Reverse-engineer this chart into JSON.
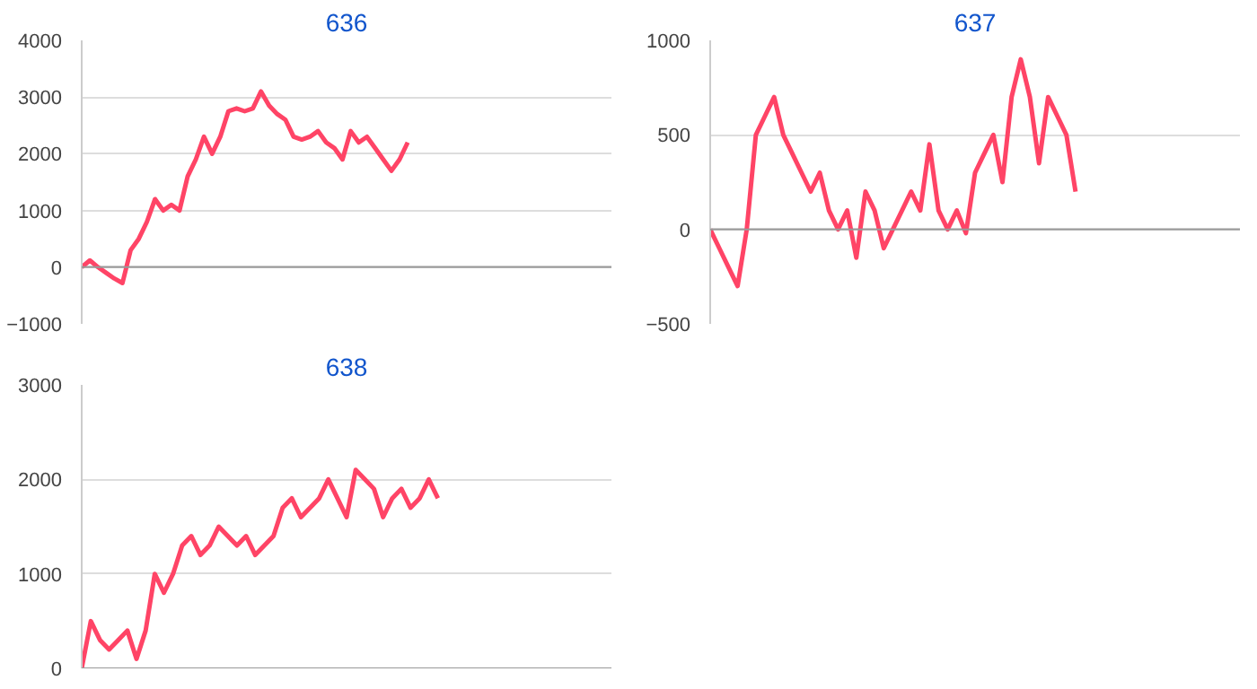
{
  "chart_data": [
    {
      "type": "line",
      "title": "636",
      "categories": [
        null,
        null,
        null,
        null,
        null,
        null,
        null,
        null,
        null,
        null,
        null,
        null,
        null,
        null,
        null,
        null,
        null,
        null,
        null,
        null,
        null,
        null,
        null,
        null,
        null,
        null,
        null,
        null,
        null,
        null,
        null,
        null,
        null,
        null,
        null,
        null,
        null,
        null,
        null,
        null,
        null,
        null,
        null,
        null,
        null,
        null,
        null,
        null,
        null,
        null,
        null,
        null,
        null,
        null,
        null,
        null,
        null,
        null,
        null,
        null,
        null,
        null,
        null,
        null,
        null,
        null
      ],
      "series": [
        {
          "color": "#ff4466",
          "values": [
            0,
            120,
            0,
            -100,
            -200,
            -280,
            300,
            500,
            800,
            1200,
            1000,
            1100,
            1000,
            1600,
            1900,
            2300,
            2000,
            2300,
            2750,
            2800,
            2750,
            2800,
            3100,
            2850,
            2700,
            2600,
            2300,
            2250,
            2300,
            2400,
            2200,
            2100,
            1900,
            2400,
            2200,
            2300,
            2100,
            1900,
            1700,
            1900,
            2200,
            null,
            null,
            null,
            null,
            null,
            null,
            null,
            null,
            null,
            null,
            null,
            null,
            null,
            null,
            null,
            null,
            null,
            null,
            null,
            null,
            null,
            null,
            null,
            null,
            null
          ]
        }
      ],
      "ylim": [
        -1000,
        4000
      ],
      "yticks": [
        -1000,
        0,
        1000,
        2000,
        3000,
        4000
      ],
      "grid": "y",
      "tick_labels": "y"
    },
    {
      "type": "line",
      "title": "637",
      "categories": [
        null,
        null,
        null,
        null,
        null,
        null,
        null,
        null,
        null,
        null,
        null,
        null,
        null,
        null,
        null,
        null,
        null,
        null,
        null,
        null,
        null,
        null,
        null,
        null,
        null,
        null,
        null,
        null,
        null,
        null,
        null,
        null,
        null,
        null,
        null,
        null,
        null,
        null,
        null,
        null,
        null,
        null,
        null,
        null,
        null,
        null,
        null,
        null,
        null,
        null,
        null,
        null,
        null,
        null,
        null,
        null,
        null,
        null,
        null
      ],
      "series": [
        {
          "color": "#ff4466",
          "values": [
            0,
            -100,
            -200,
            -300,
            0,
            500,
            600,
            700,
            500,
            400,
            300,
            200,
            300,
            100,
            0,
            100,
            -150,
            200,
            100,
            -100,
            0,
            100,
            200,
            100,
            450,
            100,
            0,
            100,
            -20,
            300,
            400,
            500,
            250,
            700,
            900,
            700,
            350,
            700,
            600,
            500,
            200,
            null,
            null,
            null,
            null,
            null,
            null,
            null,
            null,
            null,
            null,
            null,
            null,
            null,
            null,
            null,
            null,
            null,
            null
          ]
        }
      ],
      "ylim": [
        -500,
        1000
      ],
      "yticks": [
        -500,
        0,
        500,
        1000
      ],
      "grid": "y",
      "tick_labels": "y"
    },
    {
      "type": "line",
      "title": "638",
      "categories": [
        null,
        null,
        null,
        null,
        null,
        null,
        null,
        null,
        null,
        null,
        null,
        null,
        null,
        null,
        null,
        null,
        null,
        null,
        null,
        null,
        null,
        null,
        null,
        null,
        null,
        null,
        null,
        null,
        null,
        null,
        null,
        null,
        null,
        null,
        null,
        null,
        null,
        null,
        null,
        null,
        null,
        null,
        null,
        null,
        null,
        null,
        null,
        null,
        null,
        null,
        null,
        null,
        null,
        null,
        null,
        null,
        null,
        null,
        null
      ],
      "series": [
        {
          "color": "#ff4466",
          "values": [
            0,
            500,
            300,
            200,
            300,
            400,
            100,
            400,
            1000,
            800,
            1000,
            1300,
            1400,
            1200,
            1300,
            1500,
            1400,
            1300,
            1400,
            1200,
            1300,
            1400,
            1700,
            1800,
            1600,
            1700,
            1800,
            2000,
            1800,
            1600,
            2100,
            2000,
            1900,
            1600,
            1800,
            1900,
            1700,
            1800,
            2000,
            1800,
            null,
            null,
            null,
            null,
            null,
            null,
            null,
            null,
            null,
            null,
            null,
            null,
            null,
            null,
            null,
            null,
            null,
            null,
            null
          ]
        }
      ],
      "ylim": [
        0,
        3000
      ],
      "yticks": [
        0,
        1000,
        2000,
        3000
      ],
      "grid": "y",
      "tick_labels": "y"
    }
  ]
}
